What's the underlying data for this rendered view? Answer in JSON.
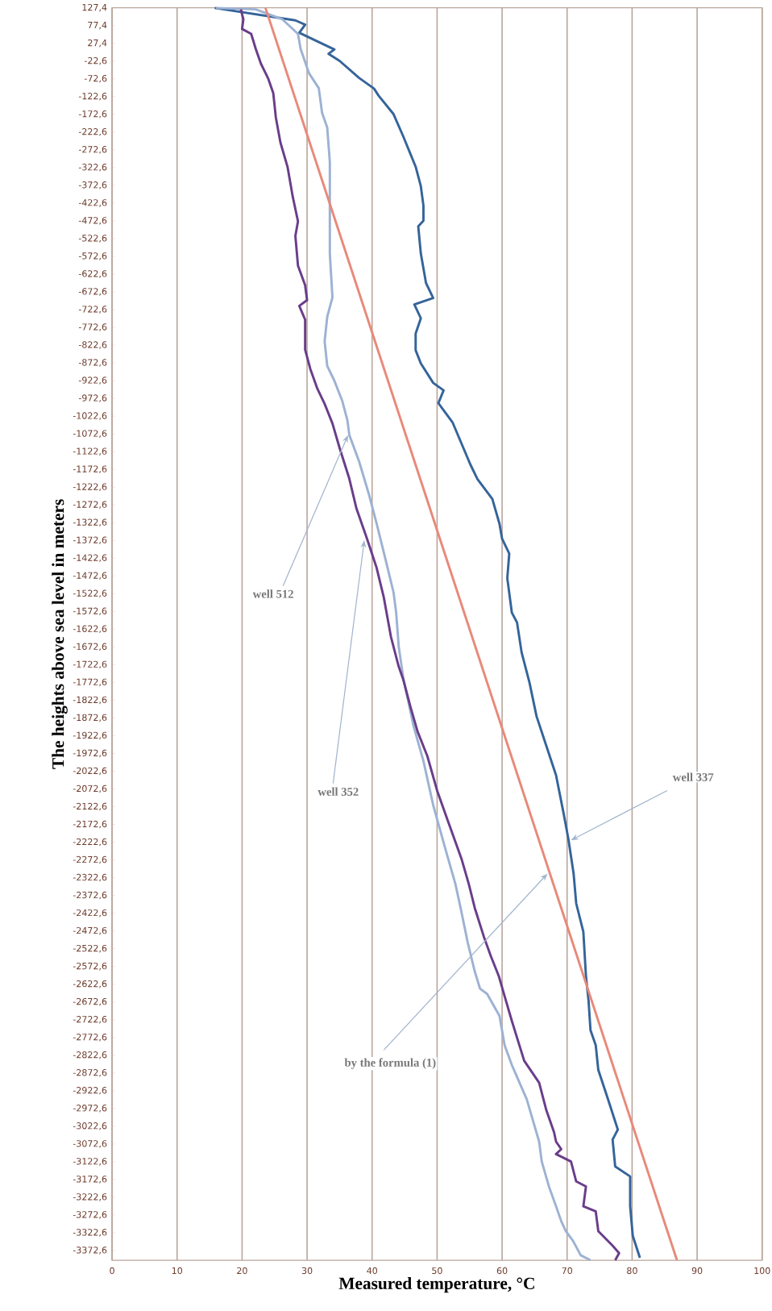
{
  "chart_data": {
    "type": "line",
    "xlabel": "Measured temperature, °C",
    "ylabel": "The heights above sea level in meters",
    "xlim": [
      0,
      100
    ],
    "xticks": [
      0,
      10,
      20,
      30,
      40,
      50,
      60,
      70,
      80,
      90,
      100
    ],
    "ylim": [
      -3400,
      127.4
    ],
    "yticks": [
      {
        "value": 127.4,
        "label": "127,4"
      },
      {
        "value": 77.4,
        "label": "77,4"
      },
      {
        "value": 27.4,
        "label": "27,4"
      },
      {
        "value": -22.6,
        "label": "-22,6"
      },
      {
        "value": -72.6,
        "label": "-72,6"
      },
      {
        "value": -122.6,
        "label": "-122,6"
      },
      {
        "value": -172.6,
        "label": "-172,6"
      },
      {
        "value": -222.6,
        "label": "-222,6"
      },
      {
        "value": -272.6,
        "label": "-272,6"
      },
      {
        "value": -322.6,
        "label": "-322,6"
      },
      {
        "value": -372.6,
        "label": "-372,6"
      },
      {
        "value": -422.6,
        "label": "-422,6"
      },
      {
        "value": -472.6,
        "label": "-472,6"
      },
      {
        "value": -522.6,
        "label": "-522,6"
      },
      {
        "value": -572.6,
        "label": "-572,6"
      },
      {
        "value": -622.6,
        "label": "-622,6"
      },
      {
        "value": -672.6,
        "label": "-672,6"
      },
      {
        "value": -722.6,
        "label": "-722,6"
      },
      {
        "value": -772.6,
        "label": "-772,6"
      },
      {
        "value": -822.6,
        "label": "-822,6"
      },
      {
        "value": -872.6,
        "label": "-872,6"
      },
      {
        "value": -922.6,
        "label": "-922,6"
      },
      {
        "value": -972.6,
        "label": "-972,6"
      },
      {
        "value": -1022.6,
        "label": "-1022,6"
      },
      {
        "value": -1072.6,
        "label": "-1072,6"
      },
      {
        "value": -1122.6,
        "label": "-1122,6"
      },
      {
        "value": -1172.6,
        "label": "-1172,6"
      },
      {
        "value": -1222.6,
        "label": "-1222,6"
      },
      {
        "value": -1272.6,
        "label": "-1272,6"
      },
      {
        "value": -1322.6,
        "label": "-1322,6"
      },
      {
        "value": -1372.6,
        "label": "-1372,6"
      },
      {
        "value": -1422.6,
        "label": "-1422,6"
      },
      {
        "value": -1472.6,
        "label": "-1472,6"
      },
      {
        "value": -1522.6,
        "label": "-1522,6"
      },
      {
        "value": -1572.6,
        "label": "-1572,6"
      },
      {
        "value": -1622.6,
        "label": "-1622,6"
      },
      {
        "value": -1672.6,
        "label": "-1672,6"
      },
      {
        "value": -1722.6,
        "label": "-1722,6"
      },
      {
        "value": -1772.6,
        "label": "-1772,6"
      },
      {
        "value": -1822.6,
        "label": "-1822,6"
      },
      {
        "value": -1872.6,
        "label": "-1872,6"
      },
      {
        "value": -1922.6,
        "label": "-1922,6"
      },
      {
        "value": -1972.6,
        "label": "-1972,6"
      },
      {
        "value": -2022.6,
        "label": "-2022,6"
      },
      {
        "value": -2072.6,
        "label": "-2072,6"
      },
      {
        "value": -2122.6,
        "label": "-2122,6"
      },
      {
        "value": -2172.6,
        "label": "-2172,6"
      },
      {
        "value": -2222.6,
        "label": "-2222,6"
      },
      {
        "value": -2272.6,
        "label": "-2272,6"
      },
      {
        "value": -2322.6,
        "label": "-2322,6"
      },
      {
        "value": -2372.6,
        "label": "-2372,6"
      },
      {
        "value": -2422.6,
        "label": "-2422,6"
      },
      {
        "value": -2472.6,
        "label": "-2472,6"
      },
      {
        "value": -2522.6,
        "label": "-2522,6"
      },
      {
        "value": -2572.6,
        "label": "-2572,6"
      },
      {
        "value": -2622.6,
        "label": "-2622,6"
      },
      {
        "value": -2672.6,
        "label": "-2672,6"
      },
      {
        "value": -2722.6,
        "label": "-2722,6"
      },
      {
        "value": -2772.6,
        "label": "-2772,6"
      },
      {
        "value": -2822.6,
        "label": "-2822,6"
      },
      {
        "value": -2872.6,
        "label": "-2872,6"
      },
      {
        "value": -2922.6,
        "label": "-2922,6"
      },
      {
        "value": -2972.6,
        "label": "-2972,6"
      },
      {
        "value": -3022.6,
        "label": "-3022,6"
      },
      {
        "value": -3072.6,
        "label": "-3072,6"
      },
      {
        "value": -3122.6,
        "label": "-3122,6"
      },
      {
        "value": -3172.6,
        "label": "-3172,6"
      },
      {
        "value": -3222.6,
        "label": "-3222,6"
      },
      {
        "value": -3272.6,
        "label": "-3272,6"
      },
      {
        "value": -3322.6,
        "label": "-3322,6"
      },
      {
        "value": -3372.6,
        "label": "-3372,6"
      }
    ],
    "grid": "x",
    "series": [
      {
        "color": "#35649a",
        "x": [
          15.8,
          28.2,
          29.7,
          28.8,
          34.2,
          33.3,
          35.0,
          38.0,
          40.3,
          41.0,
          43.3,
          44.8,
          46.7,
          47.5,
          47.9,
          47.9,
          47.1,
          47.5,
          48.3,
          49.4,
          46.5,
          47.5,
          46.7,
          46.7,
          47.5,
          49.4,
          51.0,
          50.2,
          52.4,
          55.1,
          56.2,
          58.5,
          59.6,
          60.0,
          61.1,
          60.8,
          61.5,
          62.3,
          63.0,
          64.2,
          65.3,
          66.8,
          68.3,
          69.5,
          70.2,
          71.0,
          71.4,
          72.5,
          72.9,
          73.3,
          73.6,
          74.4,
          74.8,
          76.3,
          77.8,
          77.0,
          77.4,
          79.7,
          79.7,
          80.1,
          81.2
        ],
        "values": [
          127,
          92,
          80,
          57,
          10,
          -2,
          -22,
          -70,
          -100,
          -120,
          -172,
          -235,
          -320,
          -375,
          -430,
          -472,
          -488,
          -565,
          -648,
          -690,
          -708,
          -747,
          -790,
          -837,
          -874,
          -929,
          -950,
          -986,
          -1041,
          -1158,
          -1200,
          -1256,
          -1326,
          -1368,
          -1410,
          -1479,
          -1576,
          -1604,
          -1688,
          -1772,
          -1868,
          -1951,
          -2034,
          -2145,
          -2214,
          -2311,
          -2395,
          -2475,
          -2600,
          -2669,
          -2752,
          -2794,
          -2864,
          -2947,
          -3032,
          -3060,
          -3136,
          -3164,
          -3248,
          -3331,
          -3393
        ]
      },
      {
        "color": "#9db2d3",
        "x": [
          16.0,
          22.1,
          26.2,
          28.6,
          29.0,
          30.3,
          31.8,
          32.3,
          33.1,
          33.5,
          33.5,
          33.9,
          33.1,
          32.7,
          33.1,
          34.2,
          35.4,
          36.2,
          36.5,
          38.0,
          39.5,
          40.7,
          42.2,
          43.3,
          43.7,
          44.1,
          44.8,
          46.4,
          47.9,
          49.4,
          51.3,
          52.8,
          53.6,
          54.7,
          55.8,
          56.6,
          57.7,
          59.6,
          60.4,
          61.5,
          63.8,
          65.7,
          66.1,
          67.2,
          68.3,
          69.1,
          69.8,
          70.9,
          72.1,
          73.6
        ],
        "values": [
          127,
          123,
          95,
          54,
          12,
          -57,
          -99,
          -168,
          -210,
          -307,
          -565,
          -688,
          -743,
          -812,
          -881,
          -923,
          -979,
          -1034,
          -1076,
          -1150,
          -1242,
          -1325,
          -1436,
          -1519,
          -1575,
          -1672,
          -1760,
          -1897,
          -1994,
          -2118,
          -2243,
          -2339,
          -2406,
          -2504,
          -2587,
          -2635,
          -2650,
          -2712,
          -2795,
          -2850,
          -2947,
          -3066,
          -3122,
          -3192,
          -3248,
          -3290,
          -3318,
          -3345,
          -3386,
          -3400
        ]
      },
      {
        "color": "#6a3d8a",
        "x": [
          19.8,
          20.2,
          20.0,
          21.4,
          22.1,
          22.9,
          24.0,
          24.8,
          25.2,
          25.9,
          27.0,
          27.8,
          28.6,
          28.2,
          28.6,
          29.7,
          30.0,
          28.8,
          29.7,
          29.7,
          30.5,
          31.6,
          32.7,
          33.9,
          35.0,
          36.5,
          37.6,
          39.2,
          40.7,
          41.8,
          42.9,
          44.1,
          44.8,
          45.9,
          47.0,
          48.5,
          50.0,
          51.9,
          53.8,
          54.9,
          55.8,
          57.2,
          58.3,
          59.5,
          60.4,
          61.5,
          63.4,
          65.7,
          66.8,
          68.0,
          68.3,
          69.1,
          68.3,
          70.6,
          71.4,
          72.9,
          72.5,
          74.4,
          74.8,
          77.0,
          78.0,
          77.4
        ],
        "values": [
          123,
          95,
          68,
          54,
          12,
          -30,
          -71,
          -113,
          -182,
          -252,
          -321,
          -405,
          -474,
          -515,
          -599,
          -654,
          -696,
          -712,
          -751,
          -835,
          -890,
          -946,
          -988,
          -1043,
          -1112,
          -1199,
          -1283,
          -1367,
          -1450,
          -1533,
          -1644,
          -1728,
          -1765,
          -1841,
          -1911,
          -1980,
          -2077,
          -2175,
          -2272,
          -2342,
          -2408,
          -2489,
          -2545,
          -2600,
          -2657,
          -2726,
          -2838,
          -2900,
          -2977,
          -3040,
          -3066,
          -3087,
          -3101,
          -3122,
          -3178,
          -3192,
          -3248,
          -3262,
          -3318,
          -3359,
          -3380,
          -3400
        ]
      },
      {
        "color": "#e8897a",
        "x": [
          23.6,
          86.9
        ],
        "values": [
          127,
          -3400
        ]
      }
    ],
    "annotations": [
      {
        "text": "well 512",
        "x": 36.3,
        "y": -1076
      },
      {
        "text": "well 352",
        "x": 38.8,
        "y": -1372
      },
      {
        "text": "well 337",
        "x": 70.6,
        "y": -2217
      },
      {
        "text": "by the formula (1)",
        "x": 67.0,
        "y": -2311
      }
    ]
  }
}
